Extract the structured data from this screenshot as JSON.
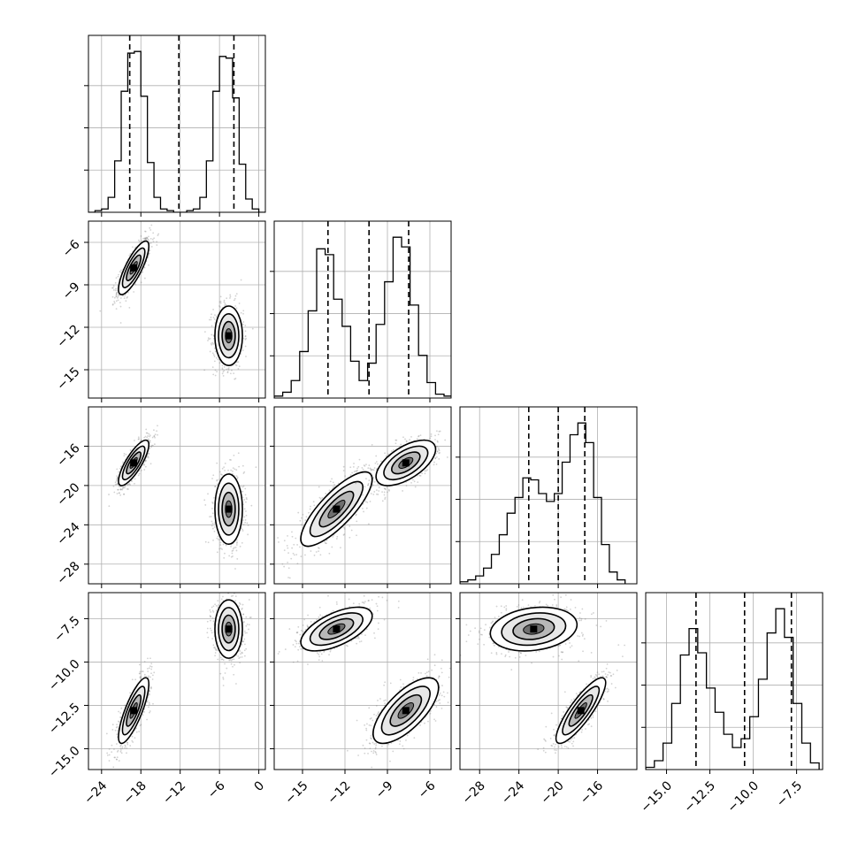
{
  "chart_data": {
    "type": "corner",
    "grid": true,
    "colors": {
      "line": "#000000",
      "grid": "#b0b0b0",
      "points": "#7f7f7f"
    },
    "parameters": [
      {
        "index": 0,
        "range": [
          -26,
          1
        ],
        "ticks": [
          -24,
          -18,
          -12,
          -6,
          0
        ],
        "tick_labels": [
          "−24",
          "−18",
          "−12",
          "−6",
          "0"
        ],
        "quantiles": [
          -19.7,
          -12.2,
          -3.8
        ],
        "modes": [
          {
            "mean": -19.1,
            "sd": 1.1,
            "weight": 0.5
          },
          {
            "mean": -4.6,
            "sd": 1.1,
            "weight": 0.5
          }
        ],
        "hist": {
          "edges": [
            -26,
            -25,
            -24,
            -23,
            -22,
            -21,
            -20,
            -19,
            -18,
            -17,
            -16,
            -15,
            -14,
            -13,
            -12,
            -11,
            -10,
            -9,
            -8,
            -7,
            -6,
            -5,
            -4,
            -3,
            -2,
            -1,
            0,
            1
          ],
          "counts": [
            0,
            1,
            2,
            9,
            31,
            73,
            96,
            97,
            70,
            30,
            9,
            2,
            1,
            0,
            0,
            1,
            2,
            9,
            31,
            73,
            94,
            93,
            69,
            29,
            8,
            2,
            0
          ]
        }
      },
      {
        "index": 1,
        "range": [
          -17,
          -4.5
        ],
        "ticks": [
          -15,
          -12,
          -9,
          -6
        ],
        "tick_labels": [
          "−15",
          "−12",
          "−9",
          "−6"
        ],
        "quantiles": [
          -13.2,
          -10.3,
          -7.5
        ],
        "modes": [
          {
            "mean": -12.6,
            "sd": 1.1,
            "weight": 0.5
          },
          {
            "mean": -7.7,
            "sd": 1.0,
            "weight": 0.5
          }
        ],
        "hist": {
          "edges": [
            -17,
            -16.4,
            -15.8,
            -15.2,
            -14.6,
            -14,
            -13.4,
            -12.8,
            -12.2,
            -11.6,
            -11,
            -10.4,
            -9.8,
            -9.2,
            -8.6,
            -8,
            -7.4,
            -6.8,
            -6.2,
            -5.6,
            -5,
            -4.4
          ],
          "counts": [
            1,
            3,
            9,
            24,
            45,
            77,
            74,
            51,
            37,
            19,
            9,
            18,
            38,
            60,
            83,
            78,
            48,
            22,
            8,
            2,
            1
          ]
        }
      },
      {
        "index": 2,
        "range": [
          -30,
          -12
        ],
        "ticks": [
          -28,
          -24,
          -20,
          -16
        ],
        "tick_labels": [
          "−28",
          "−24",
          "−20",
          "−16"
        ],
        "quantiles": [
          -23.0,
          -20.0,
          -17.3
        ],
        "modes": [
          {
            "mean": -22.5,
            "sd": 2.0,
            "weight": 0.5
          },
          {
            "mean": -17.7,
            "sd": 1.2,
            "weight": 0.5
          }
        ],
        "hist": {
          "edges": [
            -30,
            -29.2,
            -28.4,
            -27.6,
            -26.8,
            -26,
            -25.2,
            -24.4,
            -23.6,
            -22.8,
            -22,
            -21.2,
            -20.4,
            -19.6,
            -18.8,
            -18,
            -17.2,
            -16.4,
            -15.6,
            -14.8,
            -14,
            -13.2
          ],
          "counts": [
            1,
            2,
            4,
            8,
            15,
            25,
            36,
            44,
            54,
            53,
            46,
            42,
            46,
            62,
            76,
            82,
            72,
            44,
            20,
            6,
            2
          ]
        }
      },
      {
        "index": 3,
        "range": [
          -16.2,
          -6
        ],
        "ticks": [
          -15.0,
          -12.5,
          -10.0,
          -7.5
        ],
        "tick_labels": [
          "−15.0",
          "−12.5",
          "−10.0",
          "−7.5"
        ],
        "quantiles": [
          -13.3,
          -10.5,
          -7.8
        ],
        "modes": [
          {
            "mean": -12.8,
            "sd": 0.9,
            "weight": 0.5
          },
          {
            "mean": -8.1,
            "sd": 0.8,
            "weight": 0.5
          }
        ],
        "hist": {
          "edges": [
            -16.2,
            -15.7,
            -15.2,
            -14.7,
            -14.2,
            -13.7,
            -13.2,
            -12.7,
            -12.2,
            -11.7,
            -11.2,
            -10.7,
            -10.2,
            -9.7,
            -9.2,
            -8.7,
            -8.2,
            -7.7,
            -7.2,
            -6.7,
            -6.2
          ],
          "counts": [
            1,
            4,
            12,
            30,
            52,
            64,
            53,
            37,
            26,
            16,
            10,
            14,
            24,
            41,
            62,
            73,
            60,
            30,
            12,
            3
          ]
        }
      }
    ],
    "pairs": [
      {
        "row": 1,
        "col": 0,
        "clusters": [
          {
            "mean": [
              -19.1,
              -7.8
            ],
            "sd": [
              1.1,
              0.9
            ],
            "rho": 0.8
          },
          {
            "mean": -4.6,
            "mean_y": -12.6,
            "sd": [
              1.0,
              1.0
            ],
            "rho": 0.0
          }
        ]
      },
      {
        "row": 2,
        "col": 0,
        "clusters": [
          {
            "mean": [
              -19.1,
              -17.7
            ],
            "sd": [
              1.1,
              1.1
            ],
            "rho": 0.8
          },
          {
            "mean": [
              -4.6,
              -22.4
            ],
            "sd": [
              1.0,
              1.7
            ],
            "rho": 0.0
          }
        ]
      },
      {
        "row": 2,
        "col": 1,
        "clusters": [
          {
            "mean": [
              -12.6,
              -22.4
            ],
            "sd": [
              1.2,
              1.8
            ],
            "rho": 0.8
          },
          {
            "mean": [
              -7.7,
              -17.7
            ],
            "sd": [
              1.0,
              1.1
            ],
            "rho": 0.6
          }
        ]
      },
      {
        "row": 3,
        "col": 0,
        "clusters": [
          {
            "mean": [
              -19.1,
              -12.8
            ],
            "sd": [
              1.1,
              0.9
            ],
            "rho": 0.8
          },
          {
            "mean": [
              -4.6,
              -8.1
            ],
            "sd": [
              1.0,
              0.8
            ],
            "rho": 0.0
          }
        ]
      },
      {
        "row": 3,
        "col": 1,
        "clusters": [
          {
            "mean": [
              -12.6,
              -8.1
            ],
            "sd": [
              1.2,
              0.6
            ],
            "rho": 0.6
          },
          {
            "mean": [
              -7.7,
              -12.8
            ],
            "sd": [
              1.1,
              0.9
            ],
            "rho": 0.7
          }
        ]
      },
      {
        "row": 3,
        "col": 2,
        "clusters": [
          {
            "mean": [
              -22.5,
              -8.1
            ],
            "sd": [
              2.1,
              0.6
            ],
            "rho": 0.2
          },
          {
            "mean": [
              -17.7,
              -12.8
            ],
            "sd": [
              1.2,
              0.9
            ],
            "rho": 0.85
          }
        ]
      }
    ]
  }
}
